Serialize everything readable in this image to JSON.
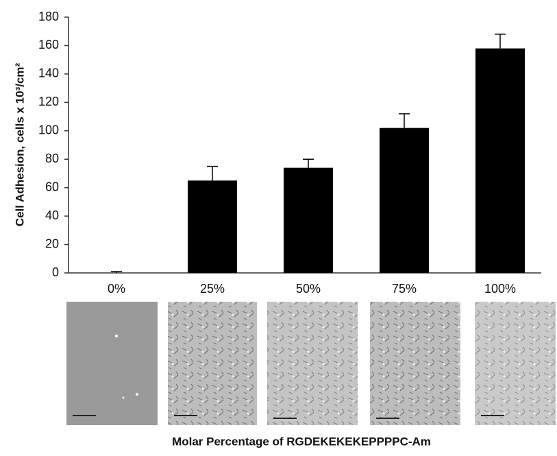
{
  "chart_data": {
    "type": "bar",
    "y_label": "Cell Adhesion, cells x 10³/cm²",
    "x_label": "Molar Percentage of  RGDEKEKEKEPPPPC-Am",
    "categories": [
      "0%",
      "25%",
      "50%",
      "75%",
      "100%"
    ],
    "values": [
      0,
      65,
      74,
      102,
      158
    ],
    "errors": [
      1,
      10,
      6,
      10,
      10
    ],
    "color": "#000000",
    "ylim": [
      0,
      180
    ],
    "yticks": [
      0,
      20,
      40,
      60,
      80,
      100,
      120,
      140,
      160,
      180
    ]
  }
}
